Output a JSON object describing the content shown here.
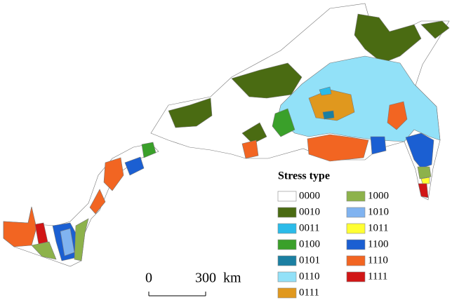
{
  "legend": {
    "title": "Stress type",
    "items": [
      {
        "label": "0000",
        "color": "#ffffff"
      },
      {
        "label": "0010",
        "color": "#4a6b12"
      },
      {
        "label": "0011",
        "color": "#2bbbe9"
      },
      {
        "label": "0100",
        "color": "#3aa02a"
      },
      {
        "label": "0101",
        "color": "#1b7fa2"
      },
      {
        "label": "0110",
        "color": "#92e1f8"
      },
      {
        "label": "0111",
        "color": "#e0981e"
      },
      {
        "label": "1000",
        "color": "#8db24b"
      },
      {
        "label": "1010",
        "color": "#80b3f0"
      },
      {
        "label": "1011",
        "color": "#ffff33"
      },
      {
        "label": "1100",
        "color": "#1b5fd2"
      },
      {
        "label": "1110",
        "color": "#f26522"
      },
      {
        "label": "1111",
        "color": "#d11616"
      }
    ]
  },
  "scale_bar": {
    "start": 0,
    "end": 300,
    "unit": "km"
  }
}
